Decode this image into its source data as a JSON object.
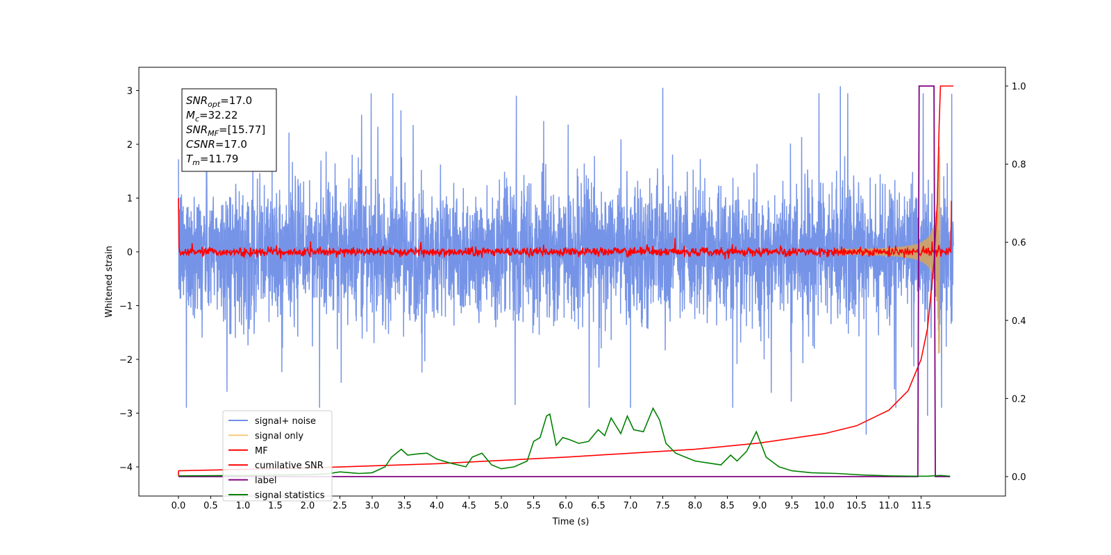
{
  "chart_data": {
    "type": "line",
    "xlabel": "Time (s)",
    "ylabel": "Whitened strain",
    "xlim": [
      -0.6,
      12.55
    ],
    "ylim_left": [
      -4.5,
      3.45
    ],
    "ylim_right": [
      -0.05,
      1.03
    ],
    "x_ticks": [
      "0.0",
      "0.5",
      "1.0",
      "1.5",
      "2.0",
      "2.5",
      "3.0",
      "3.5",
      "4.0",
      "4.5",
      "5.0",
      "5.5",
      "6.0",
      "6.5",
      "7.0",
      "7.5",
      "8.0",
      "8.5",
      "9.0",
      "9.5",
      "10.0",
      "10.5",
      "11.0",
      "11.5"
    ],
    "y_ticks_left": [
      "3",
      "2",
      "1",
      "0",
      "−1",
      "−2",
      "−3",
      "−4"
    ],
    "y_ticks_right": [
      "1.0",
      "0.8",
      "0.6",
      "0.4",
      "0.2",
      "0.0"
    ],
    "info_box": [
      {
        "base": "SNR",
        "sub": "opt",
        "value": "=17.0"
      },
      {
        "base": "M",
        "sub": "c",
        "value": "=32.22"
      },
      {
        "base": "SNR",
        "sub": "MF",
        "value": "=[15.77]"
      },
      {
        "base": "CSNR",
        "sub": "",
        "value": "=17.0"
      },
      {
        "base": "T",
        "sub": "m",
        "value": "=11.79"
      }
    ],
    "legend": [
      {
        "label": "signal+ noise",
        "color": "#6f8ee6"
      },
      {
        "label": "signal only",
        "color": "#f5c97a"
      },
      {
        "label": "MF",
        "color": "#ff0000"
      },
      {
        "label": "cumilative SNR",
        "color": "#ff0000"
      },
      {
        "label": "label",
        "color": "#800080"
      },
      {
        "label": "signal statistics",
        "color": "#008000"
      }
    ],
    "series": [
      {
        "name": "signal+ noise",
        "axis": "left",
        "x_range": [
          0.0,
          12.0
        ],
        "envelope_typical": [
          -1.5,
          1.5
        ],
        "peaks": [
          [
            1.45,
            2.75
          ],
          [
            7.5,
            3.05
          ],
          [
            10.25,
            3.08
          ],
          [
            7.0,
            -2.9
          ],
          [
            10.65,
            -3.4
          ],
          [
            11.6,
            -3.05
          ]
        ]
      },
      {
        "name": "signal only",
        "axis": "left",
        "chirp_start": 10.2,
        "chirp_end": 11.79,
        "peak_amplitude": 2.4
      },
      {
        "name": "MF",
        "axis": "left",
        "baseline": 0.0,
        "jitter": 0.08
      },
      {
        "name": "cumilative SNR",
        "axis": "right",
        "x": [
          0.0,
          2.0,
          4.0,
          6.0,
          8.0,
          9.0,
          10.0,
          10.5,
          11.0,
          11.3,
          11.5,
          11.6,
          11.7,
          11.75,
          11.78,
          11.8,
          12.0
        ],
        "values": [
          0.015,
          0.022,
          0.033,
          0.05,
          0.07,
          0.086,
          0.11,
          0.13,
          0.17,
          0.22,
          0.3,
          0.38,
          0.55,
          0.7,
          0.9,
          1.0,
          1.0
        ]
      },
      {
        "name": "label",
        "axis": "right",
        "x": [
          0.0,
          11.45,
          11.47,
          11.7,
          11.72,
          11.95
        ],
        "values": [
          0.0,
          0.0,
          1.0,
          1.0,
          0.0,
          0.0
        ]
      },
      {
        "name": "signal statistics",
        "axis": "right",
        "x": [
          0.0,
          1.0,
          2.0,
          2.3,
          2.5,
          2.8,
          3.0,
          3.2,
          3.3,
          3.45,
          3.55,
          3.7,
          3.85,
          4.0,
          4.2,
          4.45,
          4.55,
          4.7,
          4.85,
          5.0,
          5.2,
          5.4,
          5.5,
          5.6,
          5.7,
          5.75,
          5.85,
          5.95,
          6.05,
          6.2,
          6.35,
          6.5,
          6.6,
          6.7,
          6.85,
          6.95,
          7.05,
          7.2,
          7.35,
          7.45,
          7.55,
          7.7,
          7.85,
          8.0,
          8.2,
          8.4,
          8.55,
          8.65,
          8.8,
          8.95,
          9.1,
          9.3,
          9.5,
          9.8,
          10.2,
          10.6,
          11.0,
          11.4,
          11.6,
          11.8,
          11.95
        ],
        "values": [
          0.002,
          0.003,
          0.005,
          0.007,
          0.012,
          0.008,
          0.01,
          0.025,
          0.05,
          0.07,
          0.055,
          0.058,
          0.06,
          0.045,
          0.035,
          0.025,
          0.05,
          0.06,
          0.03,
          0.02,
          0.025,
          0.04,
          0.09,
          0.1,
          0.155,
          0.16,
          0.08,
          0.1,
          0.095,
          0.085,
          0.09,
          0.12,
          0.105,
          0.15,
          0.11,
          0.155,
          0.12,
          0.115,
          0.175,
          0.145,
          0.085,
          0.06,
          0.05,
          0.04,
          0.035,
          0.03,
          0.055,
          0.04,
          0.065,
          0.115,
          0.05,
          0.025,
          0.015,
          0.01,
          0.008,
          0.004,
          0.002,
          0.001,
          0.001,
          0.003,
          0.001
        ]
      }
    ]
  }
}
